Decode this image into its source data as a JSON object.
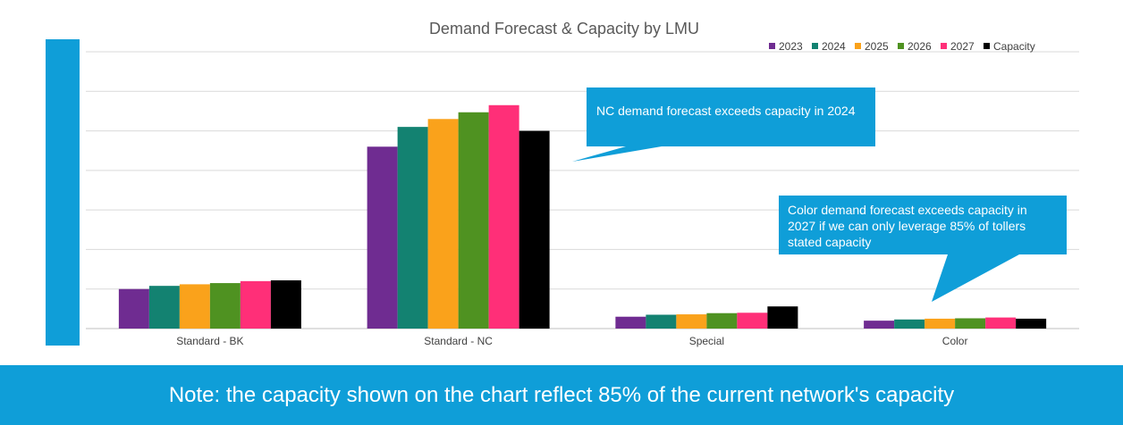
{
  "colors": {
    "accent": "#0f9ed8",
    "grid": "#d9d9d9",
    "axis": "#bfbfbf",
    "series": [
      "#6f2c91",
      "#138271",
      "#faa21b",
      "#4f9221",
      "#ff2f78",
      "#000000"
    ]
  },
  "chart_data": {
    "type": "bar",
    "title": "Demand Forecast & Capacity by LMU",
    "categories": [
      "Standard - BK",
      "Standard - NC",
      "Special",
      "Color"
    ],
    "series": [
      {
        "name": "2023",
        "values": [
          1.0,
          4.6,
          0.3,
          0.2
        ]
      },
      {
        "name": "2024",
        "values": [
          1.08,
          5.1,
          0.35,
          0.23
        ]
      },
      {
        "name": "2025",
        "values": [
          1.12,
          5.3,
          0.36,
          0.25
        ]
      },
      {
        "name": "2026",
        "values": [
          1.15,
          5.47,
          0.39,
          0.26
        ]
      },
      {
        "name": "2027",
        "values": [
          1.2,
          5.65,
          0.4,
          0.28
        ]
      },
      {
        "name": "Capacity",
        "values": [
          1.22,
          5.0,
          0.56,
          0.25
        ]
      }
    ],
    "ylim": [
      0,
      7
    ],
    "gridlines": 7,
    "legend_position": "top-right",
    "xlabel": "",
    "ylabel": ""
  },
  "callouts": [
    {
      "text": "NC demand forecast exceeds capacity in 2024"
    },
    {
      "text": "Color demand forecast exceeds capacity in 2027 if we can only leverage 85% of tollers stated capacity"
    }
  ],
  "footer": {
    "note": "Note: the capacity shown on the chart reflect 85% of the current network's capacity"
  }
}
